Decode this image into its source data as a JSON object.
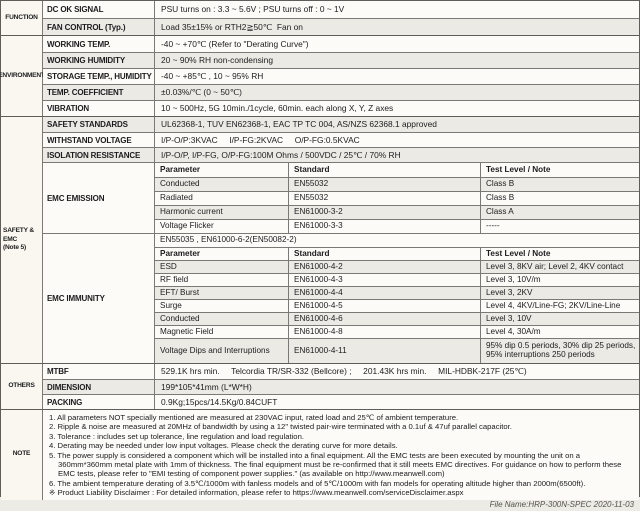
{
  "colors": {
    "table_border": "#7b7975",
    "alt_row_bg": "#eceae5",
    "section_col_bg": "#f9f7f0",
    "page_bg": "#edebe6"
  },
  "function": {
    "label": "FUNCTION",
    "rows": [
      {
        "label": "DC OK SIGNAL",
        "value": "PSU turns on : 3.3 ~ 5.6V ; PSU turns off : 0 ~ 1V"
      },
      {
        "label": "FAN CONTROL (Typ.)",
        "value": "Load 35±15% or RTH2≧50℃  Fan on"
      }
    ]
  },
  "environment": {
    "label": "ENVIRONMENT",
    "rows": [
      {
        "label": "WORKING TEMP.",
        "value": "-40 ~ +70℃ (Refer to \"Derating Curve\")"
      },
      {
        "label": "WORKING HUMIDITY",
        "value": "20 ~ 90% RH non-condensing"
      },
      {
        "label": "STORAGE TEMP., HUMIDITY",
        "value": "-40 ~ +85℃ , 10 ~ 95% RH"
      },
      {
        "label": "TEMP. COEFFICIENT",
        "value": "±0.03%/℃ (0 ~ 50℃)"
      },
      {
        "label": "VIBRATION",
        "value": "10 ~ 500Hz, 5G 10min./1cycle, 60min. each along X, Y, Z axes"
      }
    ]
  },
  "safety_emc": {
    "label_line1": "SAFETY &",
    "label_line2": "EMC",
    "label_line3": "(Note 5)",
    "rows": [
      {
        "label": "SAFETY STANDARDS",
        "value": "UL62368-1, TUV EN62368-1, EAC TP TC 004, AS/NZS 62368.1 approved"
      },
      {
        "label": "WITHSTAND VOLTAGE",
        "value": "I/P-O/P:3KVAC     I/P-FG:2KVAC     O/P-FG:0.5KVAC"
      },
      {
        "label": "ISOLATION RESISTANCE",
        "value": "I/P-O/P, I/P-FG, O/P-FG:100M Ohms / 500VDC / 25℃ / 70% RH"
      }
    ],
    "emission": {
      "label": "EMC EMISSION",
      "headers": [
        "Parameter",
        "Standard",
        "Test Level / Note"
      ],
      "rows": [
        [
          "Conducted",
          "EN55032",
          "Class B"
        ],
        [
          "Radiated",
          "EN55032",
          "Class B"
        ],
        [
          "Harmonic current",
          "EN61000-3-2",
          "Class A"
        ],
        [
          "Voltage Flicker",
          "EN61000-3-3",
          "-----"
        ]
      ]
    },
    "immunity": {
      "label": "EMC IMMUNITY",
      "compliance": "EN55035 , EN61000-6-2(EN50082-2)",
      "headers": [
        "Parameter",
        "Standard",
        "Test Level / Note"
      ],
      "rows": [
        [
          "ESD",
          "EN61000-4-2",
          "Level 3, 8KV air; Level 2, 4KV contact"
        ],
        [
          "RF field",
          "EN61000-4-3",
          "Level 3, 10V/m"
        ],
        [
          "EFT/ Burst",
          "EN61000-4-4",
          "Level 3, 2KV"
        ],
        [
          "Surge",
          "EN61000-4-5",
          "Level 4, 4KV/Line-FG; 2KV/Line-Line"
        ],
        [
          "Conducted",
          "EN61000-4-6",
          "Level 3, 10V"
        ],
        [
          "Magnetic Field",
          "EN61000-4-8",
          "Level 4, 30A/m"
        ],
        [
          "Voltage Dips and Interruptions",
          "EN61000-4-11",
          "95% dip 0.5 periods, 30% dip 25 periods, 95% interruptions 250 periods"
        ]
      ]
    }
  },
  "others": {
    "label": "OTHERS",
    "rows": [
      {
        "label": "MTBF",
        "value": "529.1K hrs min.     Telcordia TR/SR-332 (Bellcore) ;     201.43K hrs min.     MIL-HDBK-217F (25℃)"
      },
      {
        "label": "DIMENSION",
        "value": "199*105*41mm (L*W*H)"
      },
      {
        "label": "PACKING",
        "value": "0.9Kg;15pcs/14.5Kg/0.84CUFT"
      }
    ]
  },
  "note": {
    "label": "NOTE",
    "items": [
      "1. All parameters NOT specially mentioned are measured at 230VAC input, rated load and 25℃ of ambient temperature.",
      "2. Ripple & noise are measured at 20MHz of bandwidth by using a 12\" twisted pair-wire terminated with a 0.1uf & 47uf parallel capacitor.",
      "3. Tolerance : includes set up tolerance, line regulation and load regulation.",
      "4. Derating may be needed under low input voltages. Please check the derating curve for more details.",
      "5. The power supply is considered a component which will be installed into a final equipment. All the EMC tests are been executed by mounting the unit on a 360mm*360mm metal plate with 1mm of thickness. The final equipment must be re-confirmed that it still meets EMC directives. For guidance on how to perform these EMC tests, please refer to \"EMI testing of component power supplies.\" (as available on http://www.meanwell.com)",
      "6. The ambient temperature derating of 3.5℃/1000m with fanless models and of 5℃/1000m with fan models for operating altitude higher than 2000m(6500ft).",
      "※ Product Liability Disclaimer : For detailed information, please refer to https://www.meanwell.com/serviceDisclaimer.aspx"
    ]
  },
  "footer": "File Name:HRP-300N-SPEC   2020-11-03"
}
